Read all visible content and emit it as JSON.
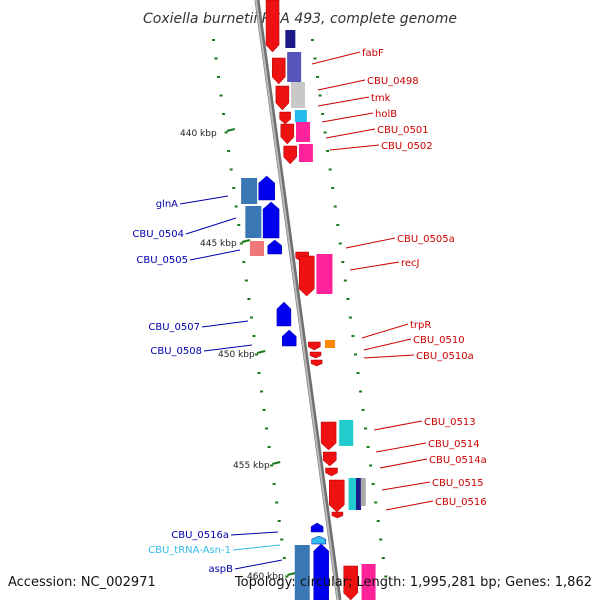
{
  "title": "Coxiella burnetii RSA 493, complete genome",
  "footer": {
    "accession": "Accession: NC_002971",
    "summary": "Topology: circular; Length: 1,995,281 bp; Genes: 1,862"
  },
  "colors": {
    "backbone": "#8a8a8a",
    "reverse_label": "#cc0000",
    "forward_label": "#0000aa",
    "trna_label": "#33bbee",
    "tick": "#1a7a1a"
  },
  "scale_labels": [
    "440 kbp",
    "445 kbp",
    "450 kbp",
    "455 kbp",
    "460 kbp"
  ],
  "reverse_genes": [
    {
      "name": "fabF"
    },
    {
      "name": "CBU_0498"
    },
    {
      "name": "tmk"
    },
    {
      "name": "holB"
    },
    {
      "name": "CBU_0501"
    },
    {
      "name": "CBU_0502"
    },
    {
      "name": "CBU_0505a"
    },
    {
      "name": "recJ"
    },
    {
      "name": "trpR"
    },
    {
      "name": "CBU_0510"
    },
    {
      "name": "CBU_0510a"
    },
    {
      "name": "CBU_0513"
    },
    {
      "name": "CBU_0514"
    },
    {
      "name": "CBU_0514a"
    },
    {
      "name": "CBU_0515"
    },
    {
      "name": "CBU_0516"
    }
  ],
  "forward_genes": [
    {
      "name": "glnA"
    },
    {
      "name": "CBU_0504"
    },
    {
      "name": "CBU_0505"
    },
    {
      "name": "CBU_0507"
    },
    {
      "name": "CBU_0508"
    },
    {
      "name": "CBU_0516a"
    },
    {
      "name": "CBU_tRNA-Asn-1"
    },
    {
      "name": "aspB"
    }
  ]
}
